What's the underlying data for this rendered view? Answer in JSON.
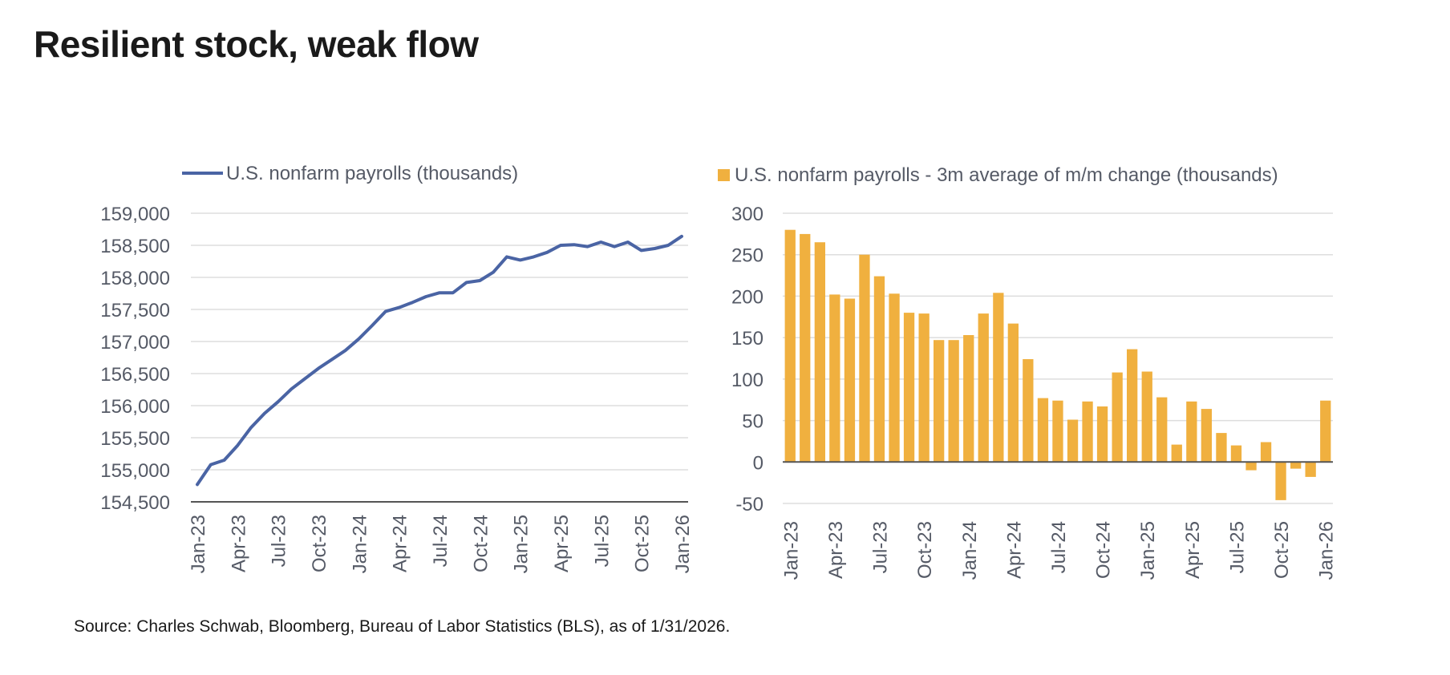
{
  "header": {
    "title": "Resilient stock, weak flow"
  },
  "footer": {
    "source": "Source: Charles Schwab, Bloomberg, Bureau of Labor Statistics (BLS), as of 1/31/2026."
  },
  "colors": {
    "line": "#4a64a4",
    "bar": "#f0b03f",
    "grid": "#dddddd",
    "axis": "#555555",
    "text": "#555a66"
  },
  "chart_data": [
    {
      "type": "line",
      "legend": "U.S. nonfarm payrolls (thousands)",
      "legend_position": "top-left",
      "grid": true,
      "ylim": [
        154500,
        159000
      ],
      "yticks": [
        "159,000",
        "158,500",
        "158,000",
        "157,500",
        "157,000",
        "156,500",
        "156,000",
        "155,500",
        "155,000",
        "154,500"
      ],
      "ytick_values": [
        159000,
        158500,
        158000,
        157500,
        157000,
        156500,
        156000,
        155500,
        155000,
        154500
      ],
      "x_tick_labels": [
        "Jan-23",
        "Apr-23",
        "Jul-23",
        "Oct-23",
        "Jan-24",
        "Apr-24",
        "Jul-24",
        "Oct-24",
        "Jan-25",
        "Apr-25",
        "Jul-25",
        "Oct-25",
        "Jan-26"
      ],
      "x_tick_index": [
        0,
        3,
        6,
        9,
        12,
        15,
        18,
        21,
        24,
        27,
        30,
        33,
        36
      ],
      "series": [
        {
          "values": [
            154770,
            155080,
            155150,
            155380,
            155660,
            155880,
            156060,
            156260,
            156420,
            156580,
            156720,
            156860,
            157040,
            157250,
            157470,
            157530,
            157610,
            157700,
            157760,
            157760,
            157920,
            157950,
            158080,
            158320,
            158270,
            158320,
            158390,
            158500,
            158510,
            158480,
            158550,
            158480,
            158550,
            158420,
            158450,
            158500,
            158640
          ]
        }
      ]
    },
    {
      "type": "bar",
      "legend": "U.S. nonfarm payrolls - 3m average of m/m change (thousands)",
      "legend_position": "top-left",
      "grid": true,
      "ylim": [
        -50,
        300
      ],
      "yticks": [
        "300",
        "250",
        "200",
        "150",
        "100",
        "50",
        "0",
        "-50"
      ],
      "ytick_values": [
        300,
        250,
        200,
        150,
        100,
        50,
        0,
        -50
      ],
      "x_tick_labels": [
        "Jan-23",
        "Apr-23",
        "Jul-23",
        "Oct-23",
        "Jan-24",
        "Apr-24",
        "Jul-24",
        "Oct-24",
        "Jan-25",
        "Apr-25",
        "Jul-25",
        "Oct-25",
        "Jan-26"
      ],
      "x_tick_index": [
        0,
        3,
        6,
        9,
        12,
        15,
        18,
        21,
        24,
        27,
        30,
        33,
        36
      ],
      "series": [
        {
          "values": [
            280,
            275,
            265,
            202,
            197,
            250,
            224,
            203,
            180,
            179,
            147,
            147,
            153,
            179,
            204,
            167,
            124,
            77,
            74,
            51,
            73,
            67,
            108,
            136,
            109,
            78,
            21,
            73,
            64,
            35,
            20,
            -10,
            24,
            -46,
            -8,
            -18,
            74
          ]
        }
      ]
    }
  ]
}
